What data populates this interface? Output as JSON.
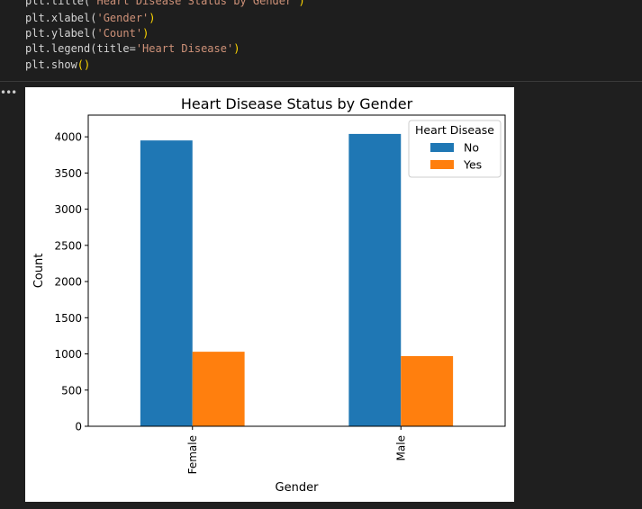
{
  "code": {
    "lines": [
      [
        {
          "t": "plt.title(",
          "c": ""
        },
        {
          "t": "'Heart Disease Status by Gender'",
          "c": "str"
        },
        {
          "t": ")",
          "c": "paren"
        }
      ],
      [
        {
          "t": "plt.xlabel(",
          "c": ""
        },
        {
          "t": "'Gender'",
          "c": "str"
        },
        {
          "t": ")",
          "c": "paren"
        }
      ],
      [
        {
          "t": "plt.ylabel(",
          "c": ""
        },
        {
          "t": "'Count'",
          "c": "str"
        },
        {
          "t": ")",
          "c": "paren"
        }
      ],
      [
        {
          "t": "plt.legend(title=",
          "c": ""
        },
        {
          "t": "'Heart Disease'",
          "c": "str"
        },
        {
          "t": ")",
          "c": "paren"
        }
      ],
      [
        {
          "t": "plt.show",
          "c": ""
        },
        {
          "t": "()",
          "c": "paren"
        }
      ]
    ]
  },
  "output": {
    "more_icon": "ellipsis-icon",
    "more_label": "•••"
  },
  "colors": {
    "no": "#1f77b4",
    "yes": "#ff7f0e"
  },
  "chart_data": {
    "type": "bar",
    "title": "Heart Disease Status by Gender",
    "xlabel": "Gender",
    "ylabel": "Count",
    "categories": [
      "Female",
      "Male"
    ],
    "series": [
      {
        "name": "No",
        "values": [
          3950,
          4040
        ]
      },
      {
        "name": "Yes",
        "values": [
          1030,
          970
        ]
      }
    ],
    "ylim": [
      0,
      4300
    ],
    "yticks": [
      0,
      500,
      1000,
      1500,
      2000,
      2500,
      3000,
      3500,
      4000
    ],
    "legend": {
      "title": "Heart Disease",
      "placement": "top-right"
    },
    "grid": false
  }
}
